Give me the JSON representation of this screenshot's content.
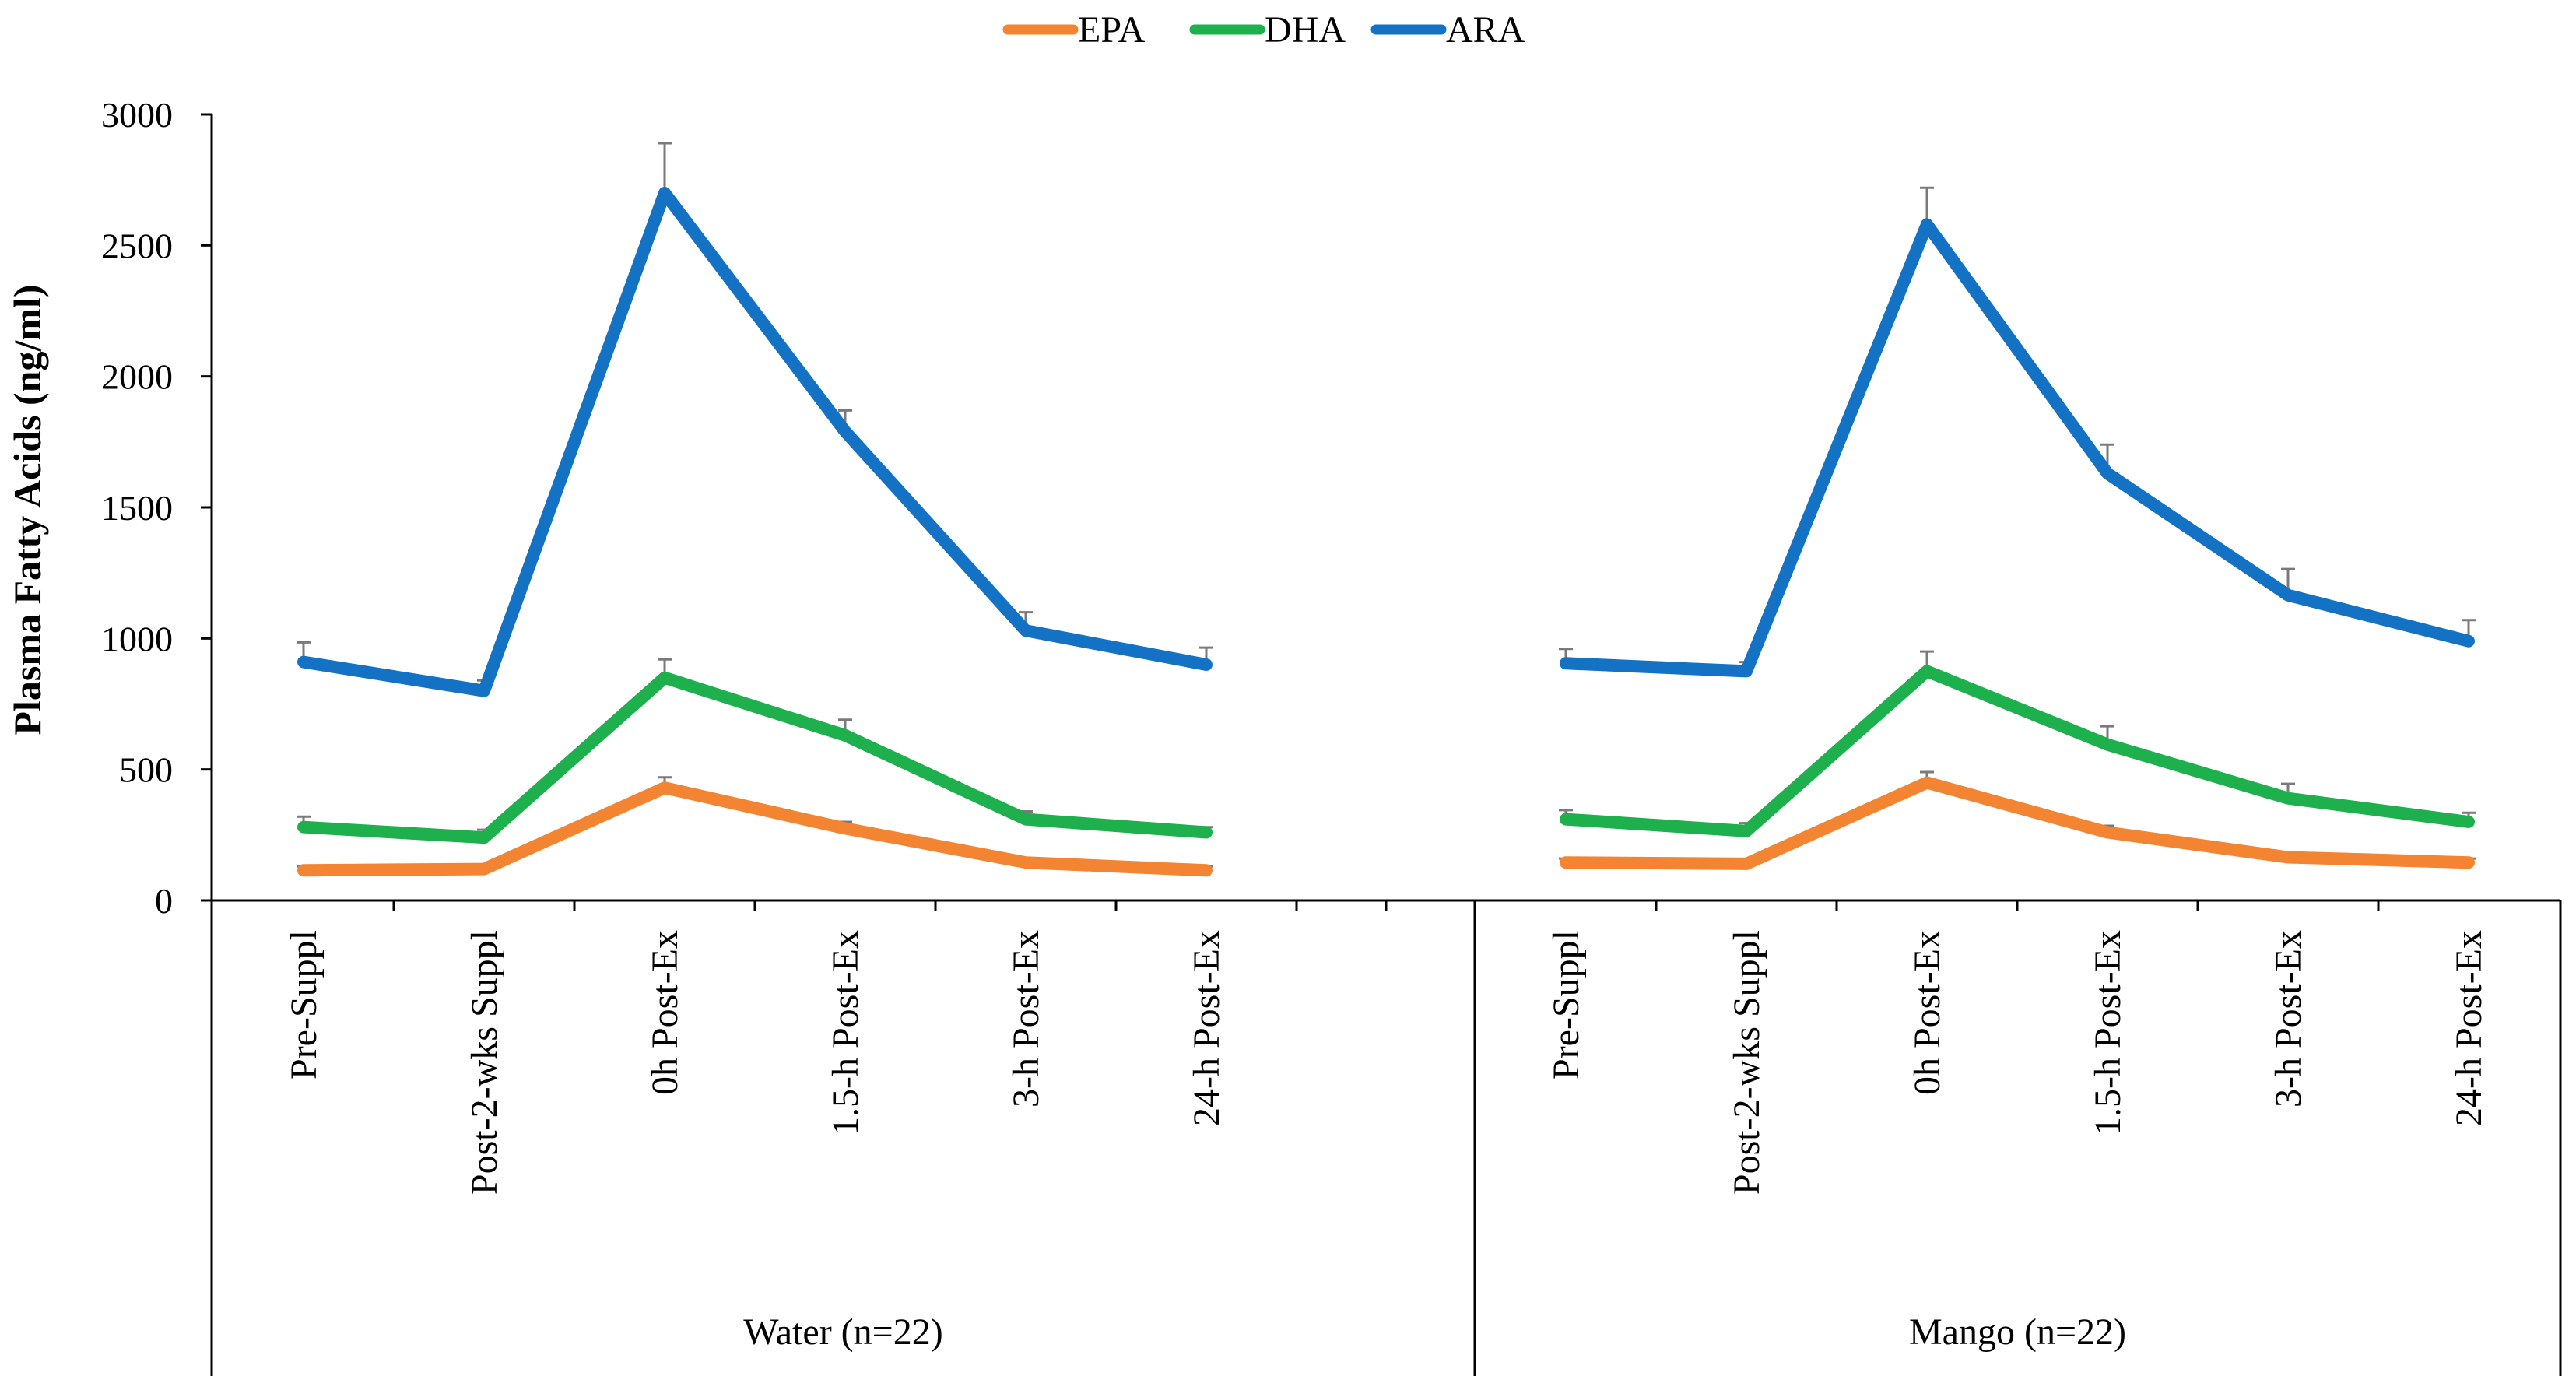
{
  "chart_data": {
    "type": "line",
    "title": "",
    "ylabel": "Plasma Fatty Acids (ng/ml)",
    "xlabel": "",
    "ylim": [
      0,
      3000
    ],
    "yticks": [
      0,
      500,
      1000,
      1500,
      2000,
      2500,
      3000
    ],
    "legend_position": "top-center",
    "colors": {
      "EPA": "#F28432",
      "DHA": "#1DB04C",
      "ARA": "#1472C4",
      "error_bar": "#7a7a7a",
      "axis": "#000000"
    },
    "groups": [
      {
        "label": "Water (n=22)",
        "categories": [
          "Pre-Suppl",
          "Post-2-wks Suppl",
          "0h Post-Ex",
          "1.5-h Post-Ex",
          "3-h Post-Ex",
          "24-h Post-Ex"
        ],
        "series": [
          {
            "name": "EPA",
            "values": [
              115,
              120,
              430,
              275,
              145,
              115
            ],
            "error": [
              15,
              15,
              40,
              25,
              15,
              15
            ]
          },
          {
            "name": "DHA",
            "values": [
              280,
              240,
              850,
              630,
              310,
              260
            ],
            "error": [
              40,
              30,
              70,
              60,
              30,
              20
            ]
          },
          {
            "name": "ARA",
            "values": [
              910,
              800,
              2700,
              1790,
              1030,
              900
            ],
            "error": [
              75,
              40,
              190,
              80,
              70,
              65
            ]
          }
        ]
      },
      {
        "label": "Mango (n=22)",
        "categories": [
          "Pre-Suppl",
          "Post-2-wks Suppl",
          "0h Post-Ex",
          "1.5-h Post-Ex",
          "3-h Post-Ex",
          "24-h Post-Ex"
        ],
        "series": [
          {
            "name": "EPA",
            "values": [
              145,
              140,
              450,
              260,
              165,
              145
            ],
            "error": [
              15,
              15,
              40,
              25,
              20,
              15
            ]
          },
          {
            "name": "DHA",
            "values": [
              310,
              265,
              875,
              595,
              390,
              300
            ],
            "error": [
              35,
              30,
              75,
              70,
              55,
              35
            ]
          },
          {
            "name": "ARA",
            "values": [
              905,
              875,
              2580,
              1630,
              1165,
              990
            ],
            "error": [
              55,
              35,
              140,
              110,
              100,
              80
            ]
          }
        ]
      }
    ]
  }
}
